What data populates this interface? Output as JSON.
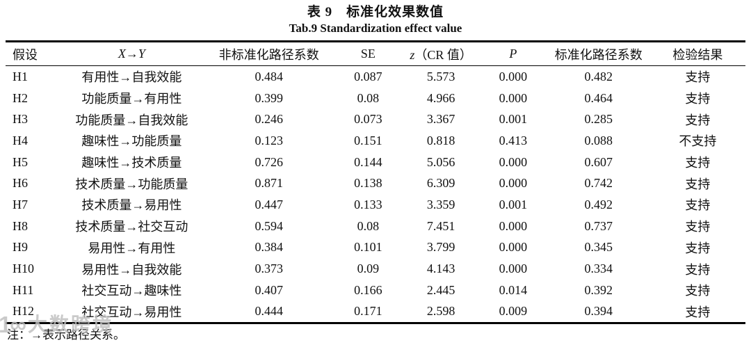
{
  "header": {
    "title_cn": "表 9　标准化效果数值",
    "title_en": "Tab.9 Standardization effect value"
  },
  "table": {
    "columns": {
      "hypothesis": "假设",
      "path_x": "X",
      "path_arrow": "→",
      "path_y": "Y",
      "unstd": "非标准化路径系数",
      "se": "SE",
      "z_symbol": "z",
      "z_rest": "（CR 值）",
      "p": "P",
      "std": "标准化路径系数",
      "result": "检验结果"
    },
    "rows": [
      {
        "hypothesis": "H1",
        "path": "有用性→自我效能",
        "unstd": "0.484",
        "se": "0.087",
        "z": "5.573",
        "p": "0.000",
        "std": "0.482",
        "result": "支持"
      },
      {
        "hypothesis": "H2",
        "path": "功能质量→有用性",
        "unstd": "0.399",
        "se": "0.08",
        "z": "4.966",
        "p": "0.000",
        "std": "0.464",
        "result": "支持"
      },
      {
        "hypothesis": "H3",
        "path": "功能质量→自我效能",
        "unstd": "0.246",
        "se": "0.073",
        "z": "3.367",
        "p": "0.001",
        "std": "0.285",
        "result": "支持"
      },
      {
        "hypothesis": "H4",
        "path": "趣味性→功能质量",
        "unstd": "0.123",
        "se": "0.151",
        "z": "0.818",
        "p": "0.413",
        "std": "0.088",
        "result": "不支持"
      },
      {
        "hypothesis": "H5",
        "path": "趣味性→技术质量",
        "unstd": "0.726",
        "se": "0.144",
        "z": "5.056",
        "p": "0.000",
        "std": "0.607",
        "result": "支持"
      },
      {
        "hypothesis": "H6",
        "path": "技术质量→功能质量",
        "unstd": "0.871",
        "se": "0.138",
        "z": "6.309",
        "p": "0.000",
        "std": "0.742",
        "result": "支持"
      },
      {
        "hypothesis": "H7",
        "path": "技术质量→易用性",
        "unstd": "0.447",
        "se": "0.133",
        "z": "3.359",
        "p": "0.001",
        "std": "0.492",
        "result": "支持"
      },
      {
        "hypothesis": "H8",
        "path": "技术质量→社交互动",
        "unstd": "0.594",
        "se": "0.08",
        "z": "7.451",
        "p": "0.000",
        "std": "0.737",
        "result": "支持"
      },
      {
        "hypothesis": "H9",
        "path": "易用性→有用性",
        "unstd": "0.384",
        "se": "0.101",
        "z": "3.799",
        "p": "0.000",
        "std": "0.345",
        "result": "支持"
      },
      {
        "hypothesis": "H10",
        "path": "易用性→自我效能",
        "unstd": "0.373",
        "se": "0.09",
        "z": "4.143",
        "p": "0.000",
        "std": "0.334",
        "result": "支持"
      },
      {
        "hypothesis": "H11",
        "path": "社交互动→趣味性",
        "unstd": "0.407",
        "se": "0.166",
        "z": "2.445",
        "p": "0.014",
        "std": "0.392",
        "result": "支持"
      },
      {
        "hypothesis": "H12",
        "path": "社交互动→易用性",
        "unstd": "0.444",
        "se": "0.171",
        "z": "2.598",
        "p": "0.009",
        "std": "0.394",
        "result": "支持"
      }
    ]
  },
  "note": {
    "text": "注：→表示路径关系。"
  },
  "watermark": {
    "logo": "1∞",
    "text": "大数跨境"
  },
  "colors": {
    "text": "#111111",
    "rule": "#000000",
    "watermark": "#bdbdbd",
    "background": "#ffffff"
  }
}
